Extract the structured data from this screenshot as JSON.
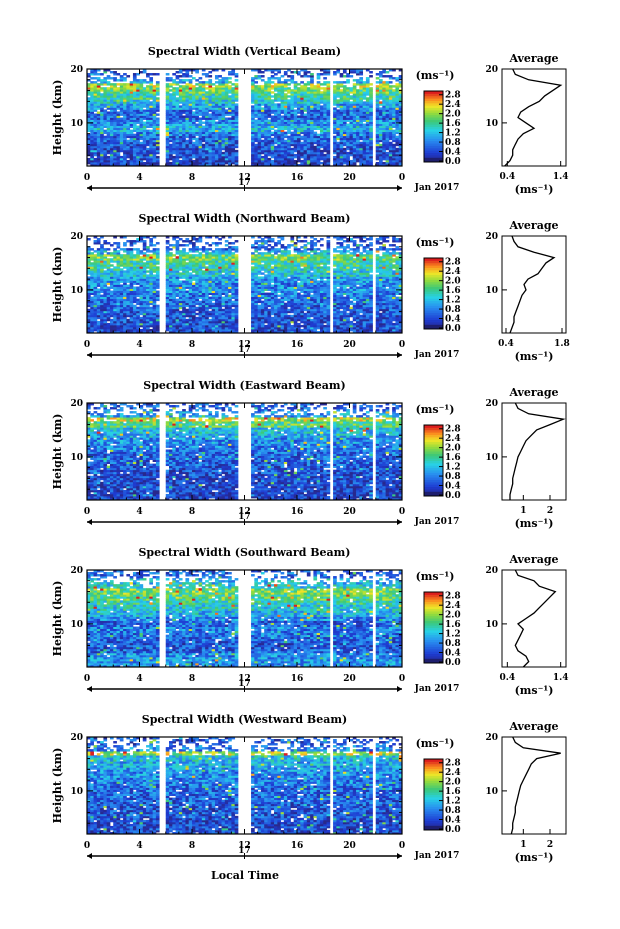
{
  "figure": {
    "xlabel": "Local Time",
    "date_label": "Jan 2017",
    "day_label": "17",
    "colorbar_unit": "(ms⁻¹)",
    "colorbar_ticks": [
      "0.0",
      "0.4",
      "0.8",
      "1.2",
      "1.6",
      "2.0",
      "2.4",
      "2.8"
    ],
    "average_title": "Average",
    "average_xlabel": "(ms⁻¹)",
    "ylabel": "Height (km)",
    "colors": {
      "low": "#2020a8",
      "mid": "#20c0e0",
      "green": "#40c060",
      "yellow": "#f0e020",
      "high": "#e02020"
    }
  },
  "chart_data": [
    {
      "type": "heatmap",
      "title": "Spectral Width (Vertical Beam)",
      "xlabel": "Local Time",
      "ylabel": "Height (km)",
      "x_ticks": [
        "0",
        "4",
        "8",
        "12",
        "16",
        "20",
        "0"
      ],
      "xlim": [
        0,
        24
      ],
      "y_ticks": [
        "20",
        "10"
      ],
      "ylim": [
        2,
        20
      ],
      "colorbar": {
        "label": "(ms⁻¹)",
        "range": [
          0,
          3.0
        ]
      },
      "gaps_hours": [
        [
          5.6,
          5.9
        ],
        [
          11.6,
          12.6
        ],
        [
          17.9,
          18.1
        ],
        [
          18.4,
          18.7
        ],
        [
          21.8,
          22.0
        ]
      ],
      "avg_ticks": [
        "0.4",
        "1.4"
      ],
      "average": {
        "xlim": [
          0.3,
          1.5
        ],
        "xticks": [
          0.4,
          1.4
        ],
        "height": [
          2,
          3,
          4,
          5,
          6,
          7,
          8,
          9,
          10,
          11,
          12,
          13,
          14,
          15,
          16,
          17,
          18,
          19,
          20
        ],
        "value": [
          0.35,
          0.45,
          0.5,
          0.5,
          0.55,
          0.6,
          0.7,
          0.9,
          0.75,
          0.6,
          0.65,
          0.8,
          1.0,
          1.1,
          1.25,
          1.4,
          0.8,
          0.55,
          0.5
        ]
      }
    },
    {
      "type": "heatmap",
      "title": "Spectral Width (Northward Beam)",
      "xlabel": "Local Time",
      "ylabel": "Height (km)",
      "x_ticks": [
        "0",
        "4",
        "8",
        "12",
        "16",
        "20",
        "0"
      ],
      "xlim": [
        0,
        24
      ],
      "y_ticks": [
        "20",
        "10"
      ],
      "ylim": [
        2,
        20
      ],
      "colorbar": {
        "label": "(ms⁻¹)",
        "range": [
          0,
          3.0
        ]
      },
      "gaps_hours": [
        [
          5.6,
          5.9
        ],
        [
          11.6,
          12.6
        ],
        [
          17.9,
          18.1
        ],
        [
          18.4,
          18.7
        ],
        [
          21.8,
          22.0
        ]
      ],
      "avg_ticks": [
        "0.4",
        "1.8"
      ],
      "average": {
        "xlim": [
          0.3,
          1.9
        ],
        "xticks": [
          0.4,
          1.8
        ],
        "height": [
          2,
          3,
          4,
          5,
          6,
          7,
          8,
          9,
          10,
          11,
          12,
          13,
          14,
          15,
          16,
          17,
          18,
          19,
          20
        ],
        "value": [
          0.5,
          0.55,
          0.6,
          0.6,
          0.65,
          0.7,
          0.75,
          0.8,
          0.9,
          0.85,
          0.95,
          1.2,
          1.3,
          1.4,
          1.6,
          1.1,
          0.7,
          0.6,
          0.55
        ]
      }
    },
    {
      "type": "heatmap",
      "title": "Spectral Width (Eastward Beam)",
      "xlabel": "Local Time",
      "ylabel": "Height (km)",
      "x_ticks": [
        "0",
        "4",
        "8",
        "12",
        "16",
        "20",
        "0"
      ],
      "xlim": [
        0,
        24
      ],
      "y_ticks": [
        "20",
        "10"
      ],
      "ylim": [
        2,
        20
      ],
      "colorbar": {
        "label": "(ms⁻¹)",
        "range": [
          0,
          3.0
        ]
      },
      "gaps_hours": [
        [
          5.6,
          5.9
        ],
        [
          11.6,
          12.6
        ],
        [
          17.9,
          18.1
        ],
        [
          18.4,
          18.7
        ],
        [
          21.8,
          22.0
        ]
      ],
      "avg_ticks": [
        "1",
        "2"
      ],
      "average": {
        "xlim": [
          0.2,
          2.6
        ],
        "xticks": [
          1,
          2
        ],
        "height": [
          2,
          3,
          4,
          5,
          6,
          7,
          8,
          9,
          10,
          11,
          12,
          13,
          14,
          15,
          16,
          17,
          18,
          19,
          20
        ],
        "value": [
          0.5,
          0.5,
          0.55,
          0.6,
          0.6,
          0.65,
          0.7,
          0.75,
          0.8,
          0.9,
          1.0,
          1.1,
          1.3,
          1.5,
          2.0,
          2.5,
          1.2,
          0.8,
          0.7
        ]
      }
    },
    {
      "type": "heatmap",
      "title": "Spectral Width (Southward Beam)",
      "xlabel": "Local Time",
      "ylabel": "Height (km)",
      "x_ticks": [
        "0",
        "4",
        "8",
        "12",
        "16",
        "20",
        "0"
      ],
      "xlim": [
        0,
        24
      ],
      "y_ticks": [
        "20",
        "10"
      ],
      "ylim": [
        2,
        20
      ],
      "colorbar": {
        "label": "(ms⁻¹)",
        "range": [
          0,
          3.0
        ]
      },
      "gaps_hours": [
        [
          5.6,
          5.9
        ],
        [
          11.6,
          12.6
        ],
        [
          17.9,
          18.1
        ],
        [
          18.4,
          18.7
        ],
        [
          21.8,
          22.0
        ]
      ],
      "avg_ticks": [
        "0.4",
        "1.4"
      ],
      "average": {
        "xlim": [
          0.3,
          1.5
        ],
        "xticks": [
          0.4,
          1.4
        ],
        "height": [
          2,
          3,
          4,
          5,
          6,
          7,
          8,
          9,
          10,
          11,
          12,
          13,
          14,
          15,
          16,
          17,
          18,
          19,
          20
        ],
        "value": [
          0.7,
          0.8,
          0.75,
          0.6,
          0.55,
          0.6,
          0.65,
          0.7,
          0.6,
          0.75,
          0.9,
          1.0,
          1.1,
          1.2,
          1.3,
          1.0,
          0.9,
          0.6,
          0.55
        ]
      }
    },
    {
      "type": "heatmap",
      "title": "Spectral Width (Westward Beam)",
      "xlabel": "Local Time",
      "ylabel": "Height (km)",
      "x_ticks": [
        "0",
        "4",
        "8",
        "12",
        "16",
        "20",
        "0"
      ],
      "xlim": [
        0,
        24
      ],
      "y_ticks": [
        "20",
        "10"
      ],
      "ylim": [
        2,
        20
      ],
      "colorbar": {
        "label": "(ms⁻¹)",
        "range": [
          0,
          3.0
        ]
      },
      "gaps_hours": [
        [
          5.6,
          5.9
        ],
        [
          11.6,
          12.6
        ],
        [
          17.9,
          18.1
        ],
        [
          18.4,
          18.7
        ],
        [
          21.8,
          22.0
        ]
      ],
      "avg_ticks": [
        "1",
        "2"
      ],
      "average": {
        "xlim": [
          0.2,
          2.6
        ],
        "xticks": [
          1,
          2
        ],
        "height": [
          2,
          3,
          4,
          5,
          6,
          7,
          8,
          9,
          10,
          11,
          12,
          13,
          14,
          15,
          16,
          17,
          18,
          19,
          20
        ],
        "value": [
          0.55,
          0.6,
          0.6,
          0.65,
          0.7,
          0.7,
          0.75,
          0.8,
          0.85,
          0.9,
          1.0,
          1.1,
          1.2,
          1.3,
          1.5,
          2.4,
          1.0,
          0.7,
          0.6
        ]
      }
    }
  ]
}
